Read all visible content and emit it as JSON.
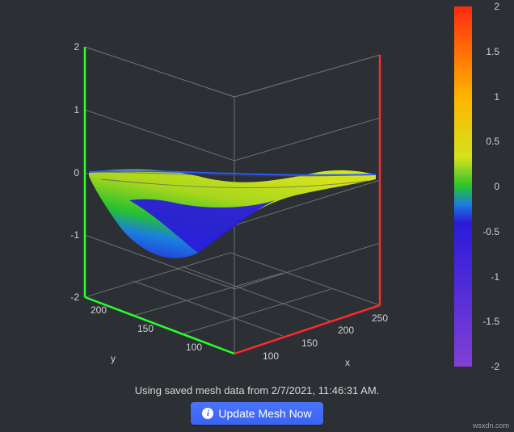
{
  "chart": {
    "type": "surface3d",
    "background_color": "#2c3034",
    "grid_color": "#6a6f76",
    "axis_text_color": "#cfd2d6",
    "axis_fontsize": 12,
    "axes": {
      "x": {
        "label": "x",
        "color": "#ff2a2a",
        "ticks": [
          100,
          150,
          200,
          250
        ]
      },
      "y": {
        "label": "y",
        "color": "#2aff2a",
        "ticks": [
          100,
          150,
          200
        ]
      },
      "z": {
        "label": "",
        "color": "#cfd2d6",
        "ticks": [
          -2,
          -1,
          0,
          1,
          2
        ],
        "range": [
          -2,
          2
        ]
      }
    },
    "surface_colorscale": [
      {
        "v": -2.0,
        "color": "#8240d6"
      },
      {
        "v": -0.6,
        "color": "#2a1bd8"
      },
      {
        "v": -0.2,
        "color": "#1b7de0"
      },
      {
        "v": 0.0,
        "color": "#27c22e"
      },
      {
        "v": 0.3,
        "color": "#d4e21c"
      },
      {
        "v": 1.0,
        "color": "#ffb400"
      },
      {
        "v": 2.0,
        "color": "#ff2a0e"
      }
    ],
    "surface_data_estimate": [
      [
        0.1,
        0.15,
        0.18,
        0.2,
        0.22,
        0.2,
        0.18,
        0.1
      ],
      [
        0.0,
        -0.1,
        -0.05,
        0.05,
        0.15,
        0.2,
        0.18,
        0.1
      ],
      [
        -0.2,
        -0.6,
        -0.5,
        -0.2,
        0.05,
        0.18,
        0.2,
        0.12
      ],
      [
        -0.4,
        -1.1,
        -0.95,
        -0.55,
        -0.1,
        0.1,
        0.18,
        0.12
      ],
      [
        -0.5,
        -1.2,
        -1.05,
        -0.6,
        -0.15,
        0.08,
        0.15,
        0.1
      ],
      [
        -0.35,
        -0.8,
        -0.7,
        -0.4,
        -0.05,
        0.1,
        0.15,
        0.1
      ],
      [
        -0.1,
        -0.3,
        -0.25,
        -0.1,
        0.05,
        0.12,
        0.15,
        0.1
      ],
      [
        0.05,
        0.02,
        0.02,
        0.05,
        0.1,
        0.12,
        0.12,
        0.08
      ]
    ],
    "x_values_estimate": [
      90,
      113,
      136,
      159,
      182,
      205,
      228,
      251
    ],
    "y_values_estimate": [
      90,
      108,
      126,
      144,
      162,
      180,
      198,
      216
    ]
  },
  "colorbar": {
    "range": [
      -2,
      2
    ],
    "ticks": [
      "2",
      "1.5",
      "1",
      "0.5",
      "0",
      "-0.5",
      "-1",
      "-1.5",
      "-2"
    ],
    "stops": [
      {
        "pct": 0,
        "color": "#ff2a0e"
      },
      {
        "pct": 25,
        "color": "#ffb400"
      },
      {
        "pct": 42,
        "color": "#d4e21c"
      },
      {
        "pct": 50,
        "color": "#27c22e"
      },
      {
        "pct": 55,
        "color": "#1b7de0"
      },
      {
        "pct": 60,
        "color": "#2a1bd8"
      },
      {
        "pct": 100,
        "color": "#8240d6"
      }
    ]
  },
  "status": {
    "text": "Using saved mesh data from 2/7/2021, 11:46:31 AM."
  },
  "actions": {
    "update_label": "Update Mesh Now"
  },
  "watermark": "wsxdn.com"
}
